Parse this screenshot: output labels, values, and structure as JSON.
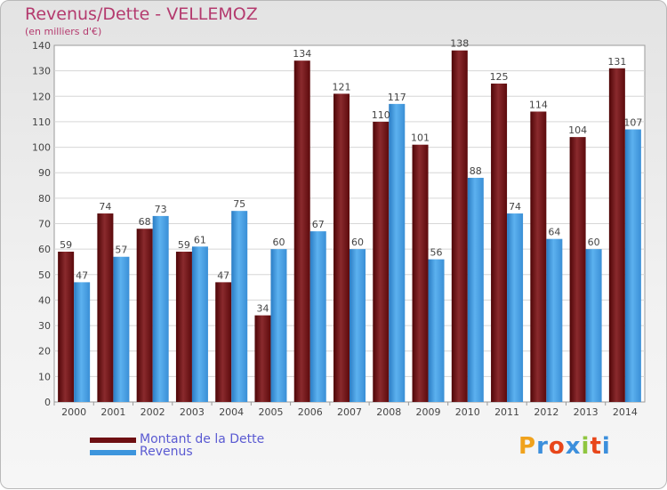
{
  "title": "Revenus/Dette - VELLEMOZ",
  "subtitle": "(en milliers d'€)",
  "colors": {
    "dette": "#6e0f12",
    "revenus": "#3d95dd",
    "title": "#b43a6e",
    "legend_text": "#5a5ad2"
  },
  "chart_data": {
    "type": "bar",
    "categories": [
      "2000",
      "2001",
      "2002",
      "2003",
      "2004",
      "2005",
      "2006",
      "2007",
      "2008",
      "2009",
      "2010",
      "2011",
      "2012",
      "2013",
      "2014"
    ],
    "series": [
      {
        "name": "Montant de la Dette",
        "values": [
          59,
          74,
          68,
          59,
          47,
          34,
          134,
          121,
          110,
          101,
          138,
          125,
          114,
          104,
          131
        ]
      },
      {
        "name": "Revenus",
        "values": [
          47,
          57,
          73,
          61,
          75,
          60,
          67,
          60,
          117,
          56,
          88,
          74,
          64,
          60,
          107
        ]
      }
    ],
    "ylim": [
      0,
      140
    ],
    "yticks": [
      0,
      10,
      20,
      30,
      40,
      50,
      60,
      70,
      80,
      90,
      100,
      110,
      120,
      130,
      140
    ],
    "grid": true,
    "legend_position": "bottom-left"
  },
  "legend": [
    {
      "label": "Montant de la Dette"
    },
    {
      "label": "Revenus"
    }
  ],
  "logo": {
    "letters": [
      "P",
      "r",
      "o",
      "x",
      "i",
      "t",
      "i"
    ],
    "colors": [
      "#f0a21c",
      "#3c8fdc",
      "#e8461a",
      "#3c8fdc",
      "#8fc63f",
      "#e8461a",
      "#3c8fdc"
    ]
  }
}
